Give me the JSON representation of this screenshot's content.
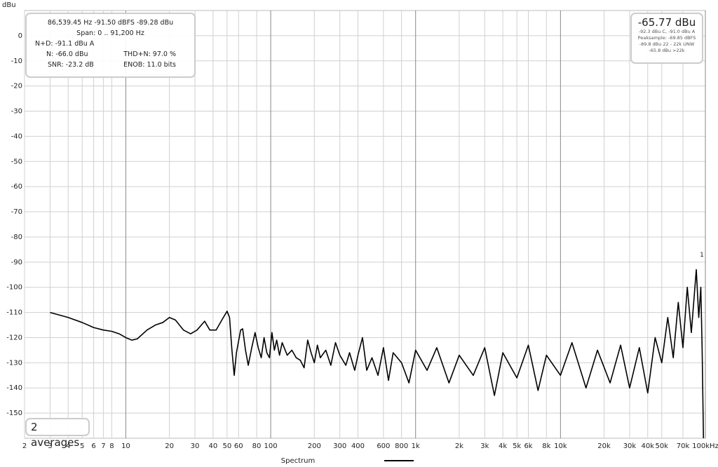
{
  "chart_data": {
    "type": "line",
    "y_label": "dBu",
    "x_log": true,
    "grid": true,
    "xlim": [
      2,
      100000
    ],
    "ylim": [
      -160,
      10
    ],
    "yticks": [
      0,
      -10,
      -20,
      -30,
      -40,
      -50,
      -60,
      -70,
      -80,
      -90,
      -100,
      -110,
      -120,
      -130,
      -140,
      -150
    ],
    "xticks": [
      2,
      3,
      4,
      5,
      6,
      7,
      8,
      10,
      20,
      30,
      40,
      50,
      60,
      80,
      100,
      200,
      300,
      400,
      600,
      800,
      {
        "value": 1000,
        "label": "1k"
      },
      {
        "value": 2000,
        "label": "2k"
      },
      {
        "value": 3000,
        "label": "3k"
      },
      {
        "value": 4000,
        "label": "4k"
      },
      {
        "value": 5000,
        "label": "5k"
      },
      {
        "value": 6000,
        "label": "6k"
      },
      {
        "value": 8000,
        "label": "8k"
      },
      {
        "value": 10000,
        "label": "10k"
      },
      {
        "value": 20000,
        "label": "20k"
      },
      {
        "value": 30000,
        "label": "30k"
      },
      {
        "value": 40000,
        "label": "40k"
      },
      {
        "value": 50000,
        "label": "50k"
      },
      {
        "value": 70000,
        "label": "70k"
      },
      {
        "value": 100000,
        "label": "100kHz"
      }
    ],
    "series": [
      {
        "name": "Spectrum",
        "color": "#000000",
        "x": [
          3,
          4,
          5,
          6,
          7,
          8,
          9,
          10,
          11,
          12,
          14,
          16,
          18,
          20,
          22,
          25,
          28,
          31,
          35,
          38,
          42,
          46,
          50,
          52,
          54,
          56,
          58,
          62,
          64,
          67,
          70,
          74,
          78,
          82,
          86,
          90,
          94,
          98,
          102,
          106,
          110,
          115,
          120,
          130,
          140,
          150,
          160,
          170,
          180,
          190,
          200,
          210,
          220,
          240,
          260,
          280,
          300,
          330,
          350,
          380,
          400,
          430,
          460,
          500,
          550,
          600,
          650,
          700,
          800,
          900,
          1000,
          1200,
          1400,
          1700,
          2000,
          2500,
          3000,
          3500,
          4000,
          5000,
          6000,
          7000,
          8000,
          10000,
          12000,
          15000,
          18000,
          22000,
          26000,
          30000,
          35000,
          40000,
          45000,
          50000,
          55000,
          60000,
          65000,
          70000,
          75000,
          80000,
          86539,
          90000,
          93000,
          95000,
          97000
        ],
        "values": [
          -110,
          -112,
          -114,
          -116,
          -117,
          -117.5,
          -118.5,
          -120,
          -121,
          -120.5,
          -117,
          -115,
          -114,
          -112,
          -113,
          -117,
          -118.5,
          -117,
          -113.5,
          -117,
          -117,
          -113,
          -109.5,
          -112,
          -125,
          -135,
          -126,
          -117,
          -116.5,
          -125,
          -131,
          -124,
          -118,
          -124,
          -128,
          -120,
          -126,
          -128,
          -118,
          -125,
          -121,
          -127,
          -122,
          -127,
          -125,
          -128,
          -129,
          -132,
          -121,
          -126,
          -130,
          -123,
          -128,
          -125,
          -131,
          -122,
          -127,
          -131,
          -126,
          -133,
          -127,
          -120,
          -133,
          -128,
          -135,
          -124,
          -137,
          -126,
          -130,
          -138,
          -125,
          -133,
          -124,
          -138,
          -127,
          -135,
          -124,
          -143,
          -126,
          -136,
          -123,
          -141,
          -127,
          -135,
          -122,
          -140,
          -125,
          -138,
          -123,
          -140,
          -124,
          -142,
          -120,
          -130,
          -112,
          -128,
          -106,
          -124,
          -100,
          -118,
          -93,
          -112,
          -100,
          -125,
          -160
        ]
      }
    ],
    "peak_marker": {
      "label": "1",
      "x": 86539,
      "y": -93
    },
    "info_box": {
      "readout": "86,539.45 Hz  -91.50 dBFS  -89.28 dBu",
      "span": "Span: 0 .. 91,200 Hz",
      "nd": "N+D: -91.1 dBu A",
      "n": "N: -66.0 dBu",
      "thdn": "THD+N: 97.0 %",
      "snr": "SNR: -23.2 dB",
      "enob": "ENOB: 11.0 bits"
    },
    "level_box": {
      "main": "-65.77 dBu",
      "lines": [
        "-92.3 dBu C, -91.0 dBu A",
        "Peaksample: -69.85 dBFS",
        "-89.8 dBu 22 - 22k UNW",
        "-65.8 dBu >22k"
      ]
    },
    "averages": "2 averages"
  }
}
